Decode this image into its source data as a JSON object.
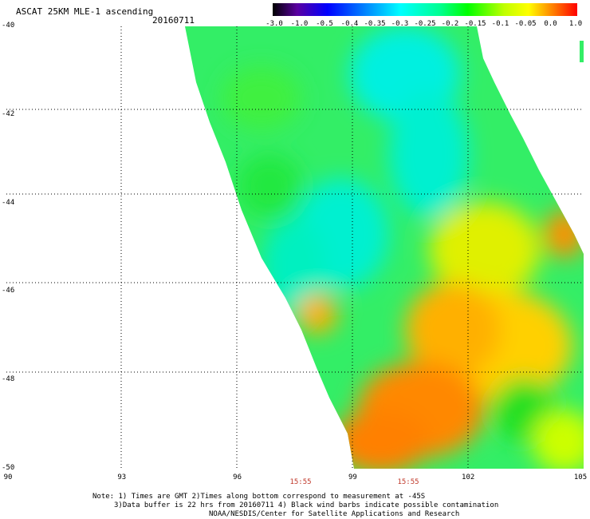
{
  "header": {
    "title": "ASCAT 25KM MLE-1 ascending",
    "date": "20160711"
  },
  "colorbar": {
    "labels": [
      "-3.0",
      "-1.0",
      "-0.5",
      "-0.4",
      "-0.35",
      "-0.3",
      "-0.25",
      "-0.2",
      "-0.15",
      "-0.1",
      "-0.05",
      "0.0",
      "1.0"
    ],
    "colors": [
      "#000000",
      "#5a00a0",
      "#0000ff",
      "#0080ff",
      "#00c0ff",
      "#00ffff",
      "#00ff90",
      "#00ff00",
      "#80ff00",
      "#ffff00",
      "#ffc000",
      "#ff8000",
      "#ff0000"
    ]
  },
  "axes": {
    "lat_labels": [
      "-40",
      "-42",
      "-44",
      "-46",
      "-48",
      "-50"
    ],
    "lon_labels": [
      "90",
      "93",
      "96",
      "99",
      "102",
      "105"
    ],
    "lat_range": [
      -40,
      -50
    ],
    "lon_range": [
      90,
      105
    ]
  },
  "times": [
    "15:55",
    "15:55"
  ],
  "notes": [
    "Note: 1) Times are GMT 2)Times along bottom correspond to measurement at -45S",
    "3)Data buffer is 22 hrs from 20160711 4) Black wind barbs indicate possible contamination",
    "NOAA/NESDIS/Center for Satellite Applications and Research"
  ]
}
